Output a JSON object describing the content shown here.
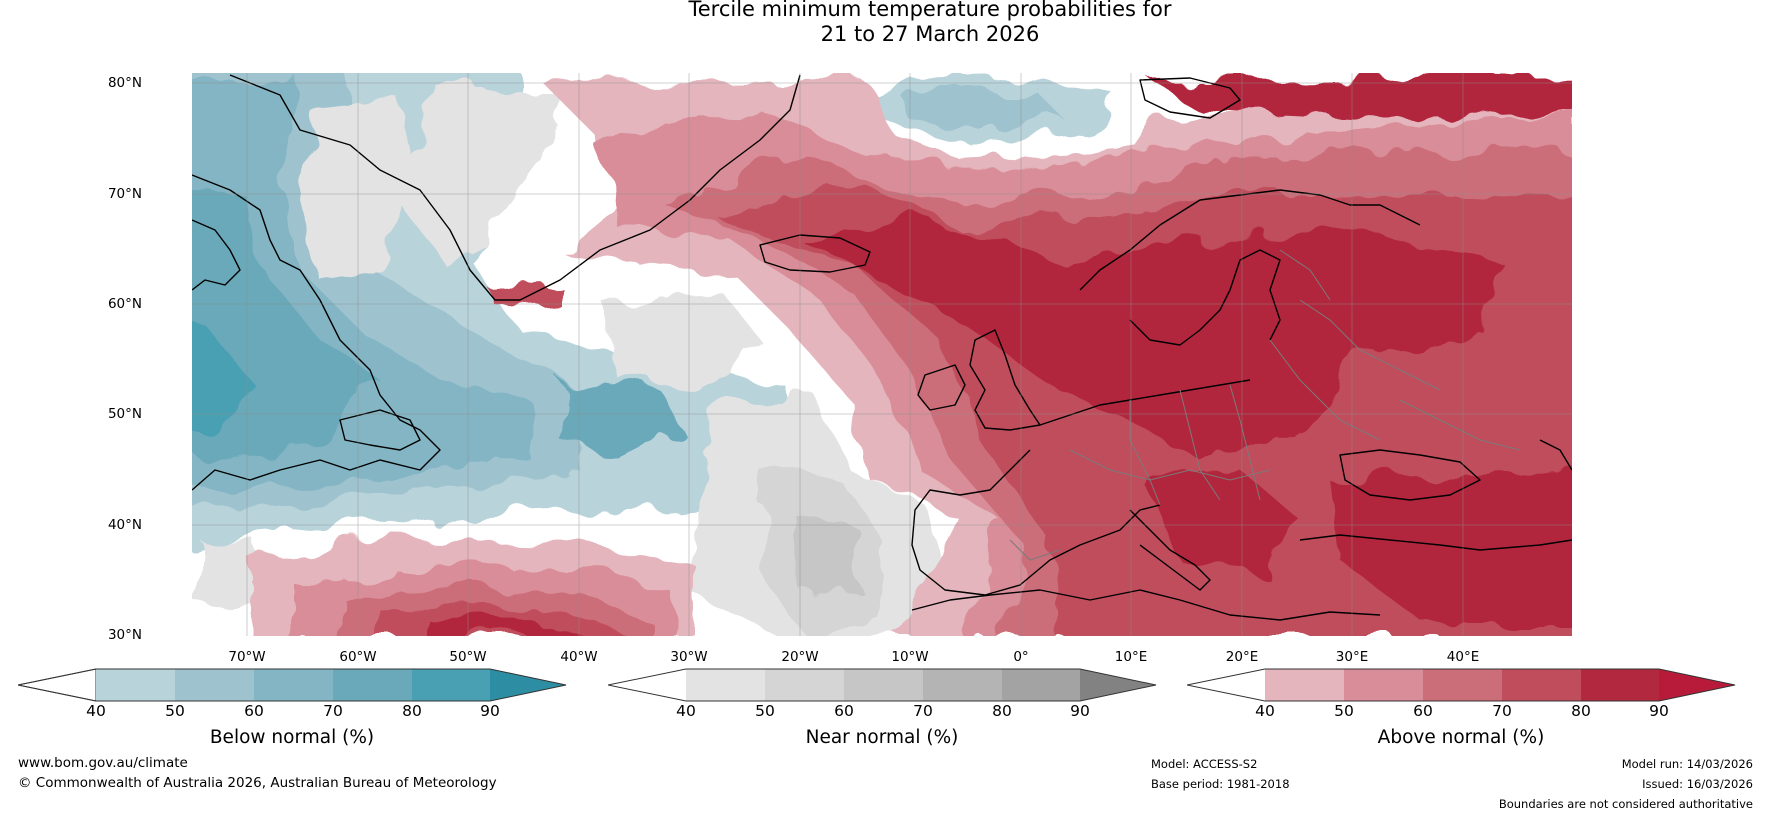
{
  "title": {
    "line1": "Tercile minimum temperature probabilities for",
    "line2": "21 to 27 March 2026"
  },
  "map": {
    "lat_labels": [
      "80°N",
      "70°N",
      "60°N",
      "50°N",
      "40°N",
      "30°N"
    ],
    "lon_labels": [
      "70°W",
      "60°W",
      "50°W",
      "40°W",
      "30°W",
      "20°W",
      "10°W",
      "0°",
      "10°E",
      "20°E",
      "30°E",
      "40°E"
    ],
    "extent": {
      "lon_min": -75,
      "lon_max": 50,
      "lat_min": 30,
      "lat_max": 81
    },
    "colors": {
      "coastline": "#000000",
      "borders": "#7a7a7a",
      "gridlines": "#8c8c8c"
    }
  },
  "colorbars": [
    {
      "label": "Below normal (%)",
      "ticks": [
        "40",
        "50",
        "60",
        "70",
        "80",
        "90"
      ],
      "colors": [
        "#ffffff",
        "#b9d3db",
        "#9ec3cf",
        "#84b5c4",
        "#69a9b9",
        "#4aa0b3",
        "#2d8ea3"
      ]
    },
    {
      "label": "Near normal (%)",
      "ticks": [
        "40",
        "50",
        "60",
        "70",
        "80",
        "90"
      ],
      "colors": [
        "#ffffff",
        "#e3e3e3",
        "#d5d5d5",
        "#c6c6c6",
        "#b4b4b4",
        "#a3a3a3",
        "#828282"
      ]
    },
    {
      "label": "Above normal (%)",
      "ticks": [
        "40",
        "50",
        "60",
        "70",
        "80",
        "90"
      ],
      "colors": [
        "#ffffff",
        "#e4b5bd",
        "#d98d98",
        "#cc6e7a",
        "#c04d5b",
        "#b2283e",
        "#b81b3a"
      ]
    }
  ],
  "footer": {
    "url": "www.bom.gov.au/climate",
    "copyright": "© Commonwealth of Australia 2026, Australian Bureau of Meteorology",
    "model": "Model: ACCESS-S2",
    "base_period": "Base period: 1981-2018",
    "model_run": "Model run: 14/03/2026",
    "issued": "Issued: 16/03/2026",
    "disclaimer": "Boundaries are not considered authoritative"
  }
}
